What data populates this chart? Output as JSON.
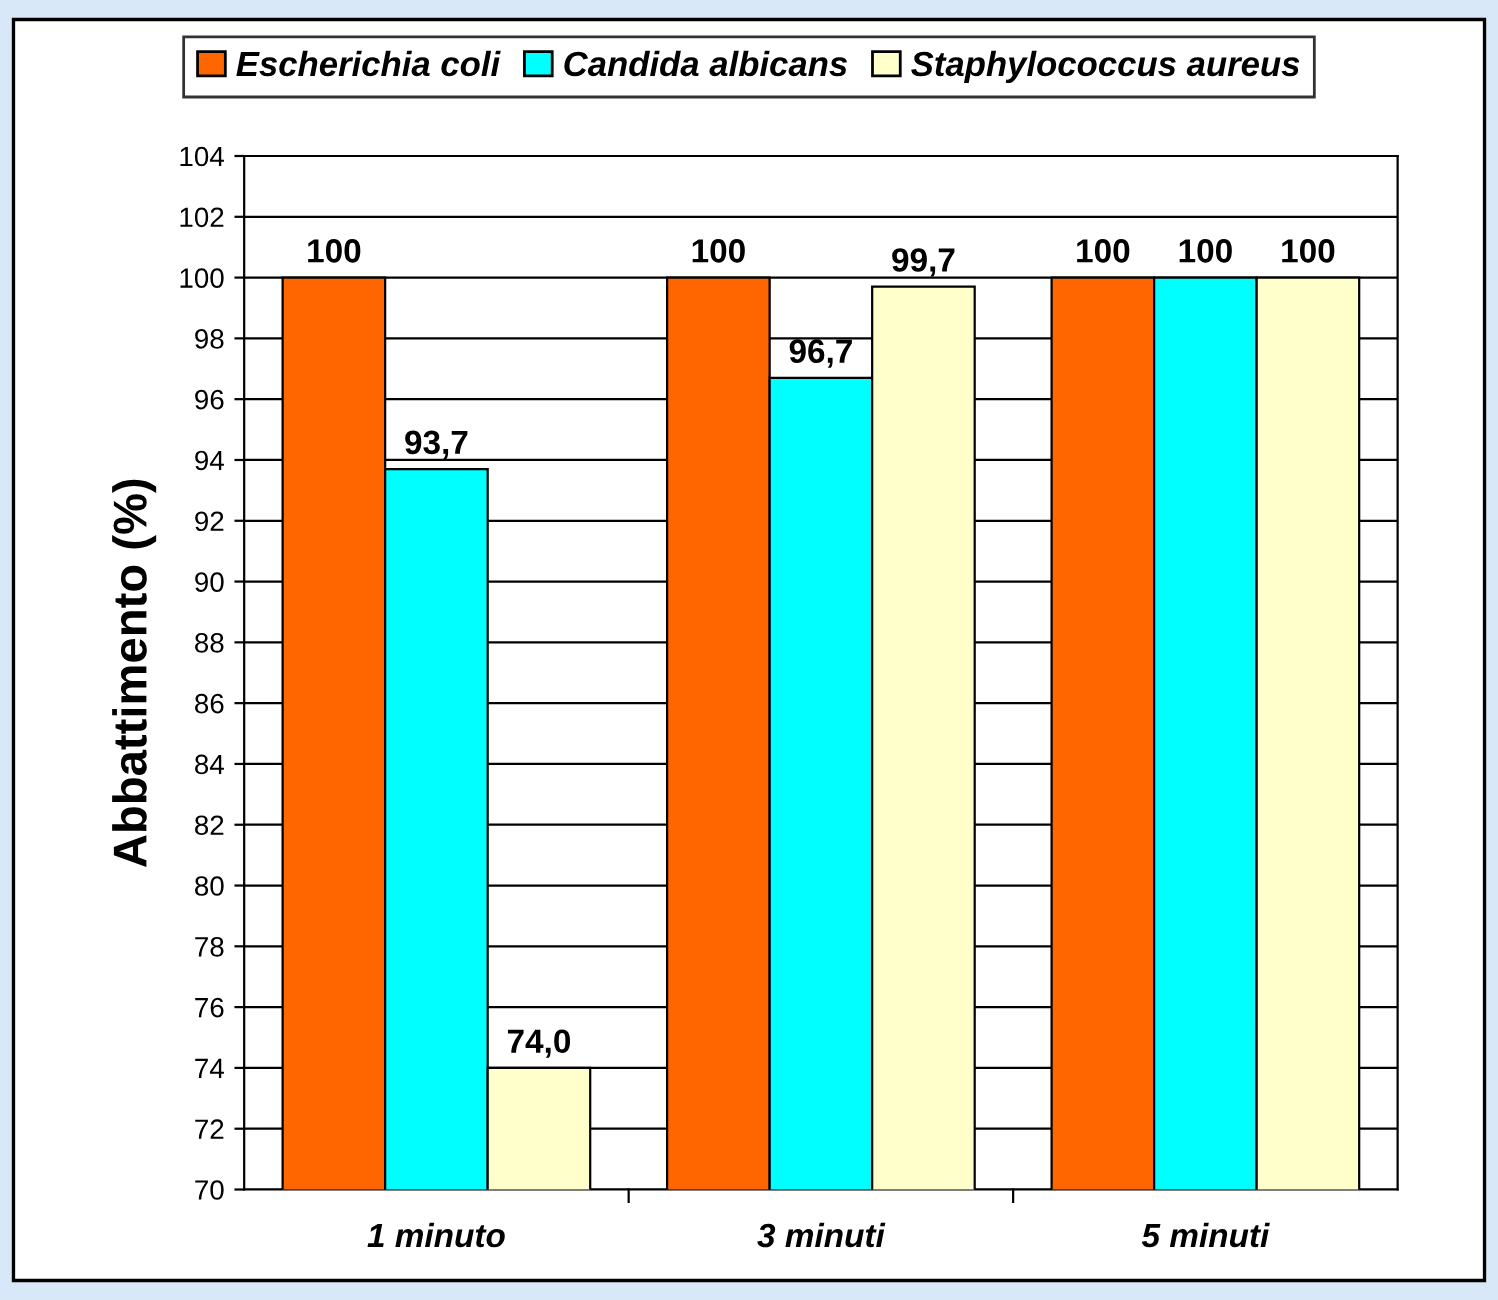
{
  "chart_data": {
    "type": "bar",
    "ylabel": "Abbattimento (%)",
    "categories": [
      "1 minuto",
      "3 minuti",
      "5 minuti"
    ],
    "series": [
      {
        "name": "Escherichia coli",
        "color": "#ff6600",
        "values": [
          100,
          100,
          100
        ],
        "value_labels": [
          "100",
          "100",
          "100"
        ]
      },
      {
        "name": "Candida albicans",
        "color": "#00ffff",
        "values": [
          93.7,
          96.7,
          100
        ],
        "value_labels": [
          "93,7",
          "96,7",
          "100"
        ]
      },
      {
        "name": "Staphylococcus aureus",
        "color": "#ffffcc",
        "values": [
          74.0,
          99.7,
          100
        ],
        "value_labels": [
          "74,0",
          "99,7",
          "100"
        ]
      }
    ],
    "ylim": [
      70,
      104
    ],
    "yticks": [
      70,
      72,
      74,
      76,
      78,
      80,
      82,
      84,
      86,
      88,
      90,
      92,
      94,
      96,
      98,
      100,
      102,
      104
    ],
    "grid": "y",
    "legend": "top"
  }
}
